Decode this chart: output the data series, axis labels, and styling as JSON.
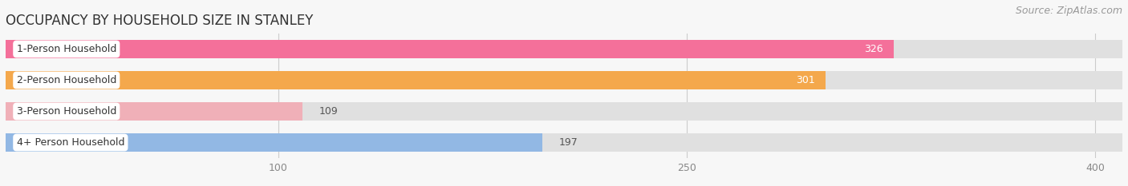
{
  "title": "OCCUPANCY BY HOUSEHOLD SIZE IN STANLEY",
  "source": "Source: ZipAtlas.com",
  "categories": [
    "1-Person Household",
    "2-Person Household",
    "3-Person Household",
    "4+ Person Household"
  ],
  "values": [
    326,
    301,
    109,
    197
  ],
  "bar_colors": [
    "#f4709a",
    "#f4a84c",
    "#f0b0b8",
    "#92b8e4"
  ],
  "bar_bg_color": "#e0e0e0",
  "xlim_max": 410,
  "xticks": [
    100,
    250,
    400
  ],
  "title_fontsize": 12,
  "source_fontsize": 9,
  "label_fontsize": 9,
  "value_fontsize": 9,
  "background_color": "#f7f7f7",
  "bar_background": "#e0e0e0",
  "bar_height": 0.6,
  "bar_gap": 1.0
}
